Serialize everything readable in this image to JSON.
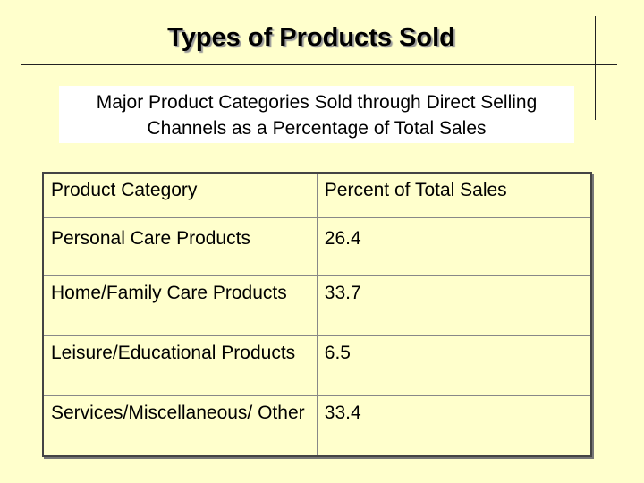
{
  "slide": {
    "title": "Types of Products Sold",
    "subtitle_line1": "Major Product Categories Sold through Direct Selling",
    "subtitle_line2": "Channels as a Percentage of Total Sales"
  },
  "table": {
    "headers": [
      "Product Category",
      "Percent of Total Sales"
    ],
    "rows": [
      {
        "category": "Personal Care Products",
        "percent": "26.4"
      },
      {
        "category": "Home/Family Care Products",
        "percent": "33.7"
      },
      {
        "category": "Leisure/Educational Products",
        "percent": "6.5"
      },
      {
        "category": "Services/Miscellaneous/ Other",
        "percent": "33.4"
      }
    ]
  }
}
